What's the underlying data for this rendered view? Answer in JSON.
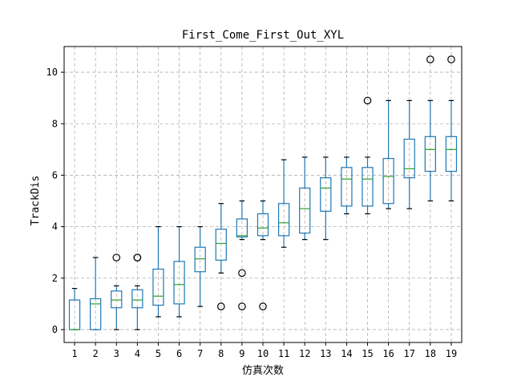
{
  "chart_data": {
    "type": "box",
    "title": "First_Come_First_Out_XYL",
    "xlabel": "仿真次数",
    "ylabel": "TrackDis",
    "ylim": [
      -0.5,
      11.0
    ],
    "yticks": [
      0,
      2,
      4,
      6,
      8,
      10
    ],
    "grid": true,
    "colors": {
      "box": "#1f77b4",
      "median": "#2ca02c",
      "whisker": "#000000",
      "grid": "#b0b0b0"
    },
    "categories": [
      "1",
      "2",
      "3",
      "4",
      "5",
      "6",
      "7",
      "8",
      "9",
      "10",
      "11",
      "12",
      "13",
      "14",
      "15",
      "16",
      "17",
      "18",
      "19"
    ],
    "boxes": [
      {
        "whislo": 0.0,
        "q1": 0.0,
        "med": 0.0,
        "q3": 1.15,
        "whishi": 1.6,
        "fliers": []
      },
      {
        "whislo": 0.0,
        "q1": 0.0,
        "med": 1.0,
        "q3": 1.2,
        "whishi": 2.8,
        "fliers": []
      },
      {
        "whislo": 0.0,
        "q1": 0.85,
        "med": 1.15,
        "q3": 1.5,
        "whishi": 1.7,
        "fliers": [
          2.8
        ]
      },
      {
        "whislo": 0.0,
        "q1": 0.85,
        "med": 1.15,
        "q3": 1.55,
        "whishi": 1.7,
        "fliers": [
          2.8,
          2.8
        ]
      },
      {
        "whislo": 0.5,
        "q1": 0.95,
        "med": 1.3,
        "q3": 2.35,
        "whishi": 4.0,
        "fliers": []
      },
      {
        "whislo": 0.5,
        "q1": 1.0,
        "med": 1.75,
        "q3": 2.65,
        "whishi": 4.0,
        "fliers": []
      },
      {
        "whislo": 0.9,
        "q1": 2.25,
        "med": 2.75,
        "q3": 3.2,
        "whishi": 4.0,
        "fliers": []
      },
      {
        "whislo": 2.2,
        "q1": 2.7,
        "med": 3.35,
        "q3": 3.9,
        "whishi": 4.9,
        "fliers": [
          0.9
        ]
      },
      {
        "whislo": 3.5,
        "q1": 3.6,
        "med": 3.65,
        "q3": 4.3,
        "whishi": 5.0,
        "fliers": [
          2.2,
          0.9
        ]
      },
      {
        "whislo": 3.5,
        "q1": 3.65,
        "med": 3.95,
        "q3": 4.5,
        "whishi": 5.0,
        "fliers": [
          0.9
        ]
      },
      {
        "whislo": 3.2,
        "q1": 3.65,
        "med": 4.15,
        "q3": 4.9,
        "whishi": 6.6,
        "fliers": []
      },
      {
        "whislo": 3.5,
        "q1": 3.75,
        "med": 4.7,
        "q3": 5.5,
        "whishi": 6.7,
        "fliers": []
      },
      {
        "whislo": 3.5,
        "q1": 4.6,
        "med": 5.5,
        "q3": 5.9,
        "whishi": 6.7,
        "fliers": []
      },
      {
        "whislo": 4.5,
        "q1": 4.8,
        "med": 5.85,
        "q3": 6.3,
        "whishi": 6.7,
        "fliers": []
      },
      {
        "whislo": 4.5,
        "q1": 4.8,
        "med": 5.85,
        "q3": 6.3,
        "whishi": 6.7,
        "fliers": [
          8.9
        ]
      },
      {
        "whislo": 4.7,
        "q1": 4.9,
        "med": 5.95,
        "q3": 6.65,
        "whishi": 8.9,
        "fliers": []
      },
      {
        "whislo": 4.7,
        "q1": 5.9,
        "med": 6.25,
        "q3": 7.4,
        "whishi": 8.9,
        "fliers": []
      },
      {
        "whislo": 5.0,
        "q1": 6.15,
        "med": 7.0,
        "q3": 7.5,
        "whishi": 8.9,
        "fliers": [
          10.5
        ]
      },
      {
        "whislo": 5.0,
        "q1": 6.15,
        "med": 7.0,
        "q3": 7.5,
        "whishi": 8.9,
        "fliers": [
          10.5
        ]
      }
    ]
  }
}
